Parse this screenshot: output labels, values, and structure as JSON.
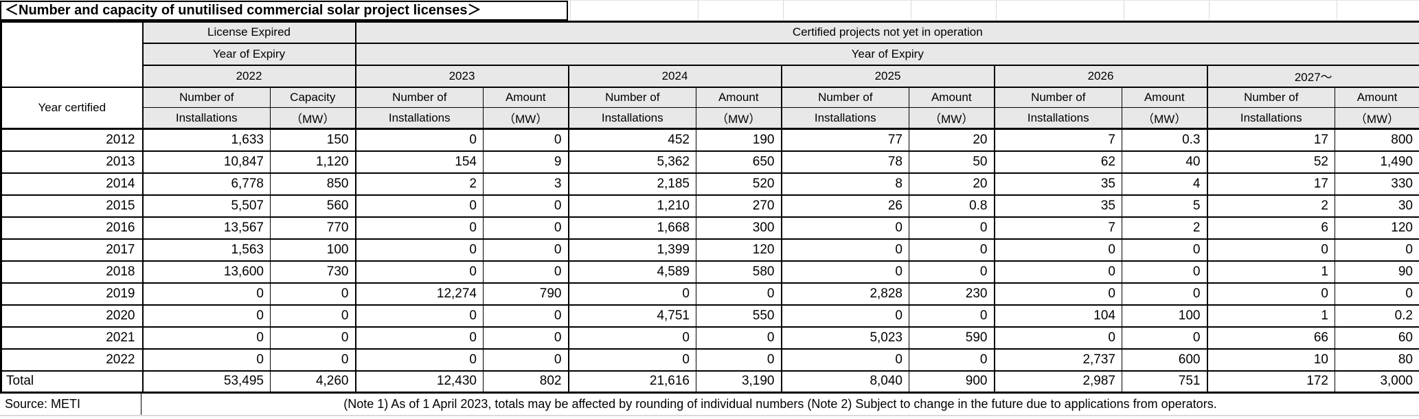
{
  "title": "＜Number and capacity of unutilised commercial solar project licenses＞",
  "table": {
    "year_certified_label": "Year certified",
    "license_expired_label": "License Expired",
    "certified_projects_label": "Certified projects not yet in operation",
    "year_of_expiry_label": "Year of Expiry",
    "expiry_years": [
      "2022",
      "2023",
      "2024",
      "2025",
      "2026",
      "2027～"
    ],
    "col_headers": {
      "number_line1": "Number of",
      "number_line2": "Installations",
      "capacity_line1": "Capacity",
      "amount_line1": "Amount",
      "mw_line2": "（MW）"
    },
    "rows": [
      {
        "year": "2012",
        "values": [
          "1,633",
          "150",
          "0",
          "0",
          "452",
          "190",
          "77",
          "20",
          "7",
          "0.3",
          "17",
          "800"
        ]
      },
      {
        "year": "2013",
        "values": [
          "10,847",
          "1,120",
          "154",
          "9",
          "5,362",
          "650",
          "78",
          "50",
          "62",
          "40",
          "52",
          "1,490"
        ]
      },
      {
        "year": "2014",
        "values": [
          "6,778",
          "850",
          "2",
          "3",
          "2,185",
          "520",
          "8",
          "20",
          "35",
          "4",
          "17",
          "330"
        ]
      },
      {
        "year": "2015",
        "values": [
          "5,507",
          "560",
          "0",
          "0",
          "1,210",
          "270",
          "26",
          "0.8",
          "35",
          "5",
          "2",
          "30"
        ]
      },
      {
        "year": "2016",
        "values": [
          "13,567",
          "770",
          "0",
          "0",
          "1,668",
          "300",
          "0",
          "0",
          "7",
          "2",
          "6",
          "120"
        ]
      },
      {
        "year": "2017",
        "values": [
          "1,563",
          "100",
          "0",
          "0",
          "1,399",
          "120",
          "0",
          "0",
          "0",
          "0",
          "0",
          "0"
        ]
      },
      {
        "year": "2018",
        "values": [
          "13,600",
          "730",
          "0",
          "0",
          "4,589",
          "580",
          "0",
          "0",
          "0",
          "0",
          "1",
          "90"
        ]
      },
      {
        "year": "2019",
        "values": [
          "0",
          "0",
          "12,274",
          "790",
          "0",
          "0",
          "2,828",
          "230",
          "0",
          "0",
          "0",
          "0"
        ]
      },
      {
        "year": "2020",
        "values": [
          "0",
          "0",
          "0",
          "0",
          "4,751",
          "550",
          "0",
          "0",
          "104",
          "100",
          "1",
          "0.2"
        ]
      },
      {
        "year": "2021",
        "values": [
          "0",
          "0",
          "0",
          "0",
          "0",
          "0",
          "5,023",
          "590",
          "0",
          "0",
          "66",
          "60"
        ]
      },
      {
        "year": "2022",
        "values": [
          "0",
          "0",
          "0",
          "0",
          "0",
          "0",
          "0",
          "0",
          "2,737",
          "600",
          "10",
          "80"
        ]
      }
    ],
    "total": {
      "label": "Total",
      "values": [
        "53,495",
        "4,260",
        "12,430",
        "802",
        "21,616",
        "3,190",
        "8,040",
        "900",
        "2,987",
        "751",
        "172",
        "3,000"
      ]
    }
  },
  "footer": {
    "source": "Source: METI",
    "note": "(Note 1) As of 1 April 2023, totals may be affected by rounding of individual numbers (Note 2) Subject to change in the future due to applications from operators."
  },
  "colors": {
    "header_bg": "#e8e8e8",
    "border": "#000000",
    "light_grid": "#d9d9d9"
  }
}
